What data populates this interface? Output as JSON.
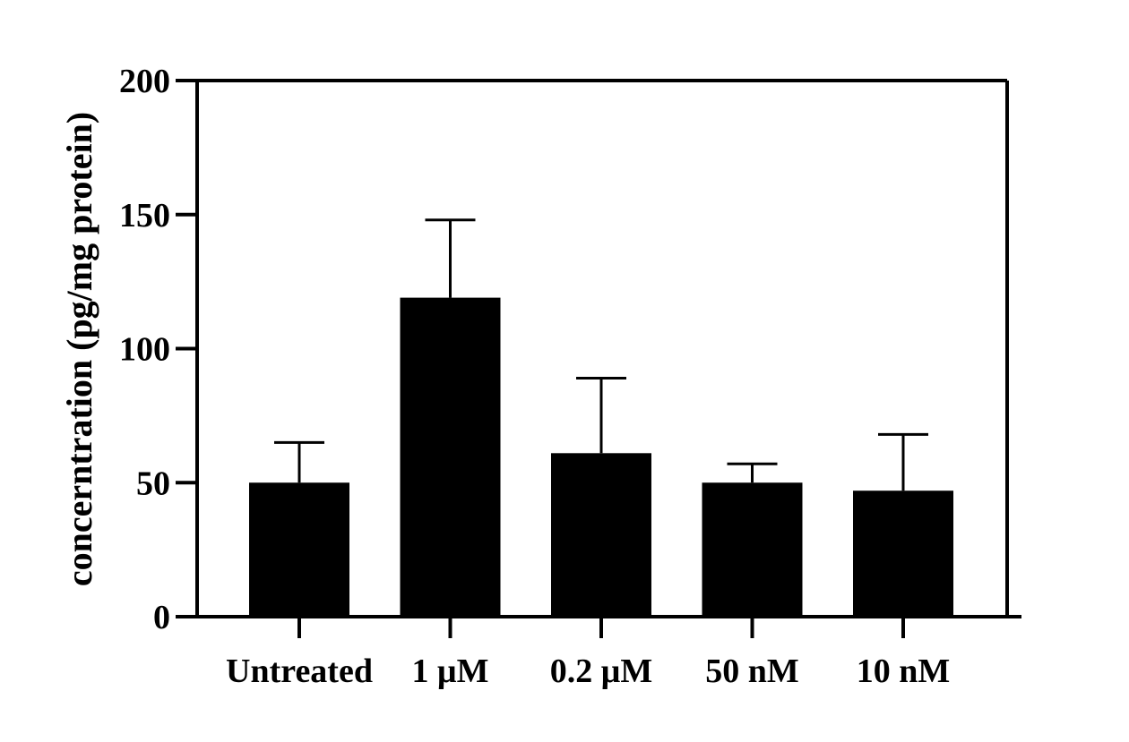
{
  "chart_data": {
    "type": "bar",
    "categories": [
      "Untreated",
      "1 μM",
      "0.2 μM",
      "50 nM",
      "10 nM"
    ],
    "values": [
      50,
      119,
      61,
      50,
      47
    ],
    "error_upper": [
      65,
      148,
      89,
      57,
      68
    ],
    "title": "",
    "xlabel": "",
    "ylabel": "concerntration (pg/mg protein)",
    "ylim": [
      0,
      200
    ],
    "yticks": [
      "0",
      "50",
      "100",
      "150",
      "200"
    ],
    "grid": false,
    "legend": "none",
    "bar_color": "#000000"
  }
}
